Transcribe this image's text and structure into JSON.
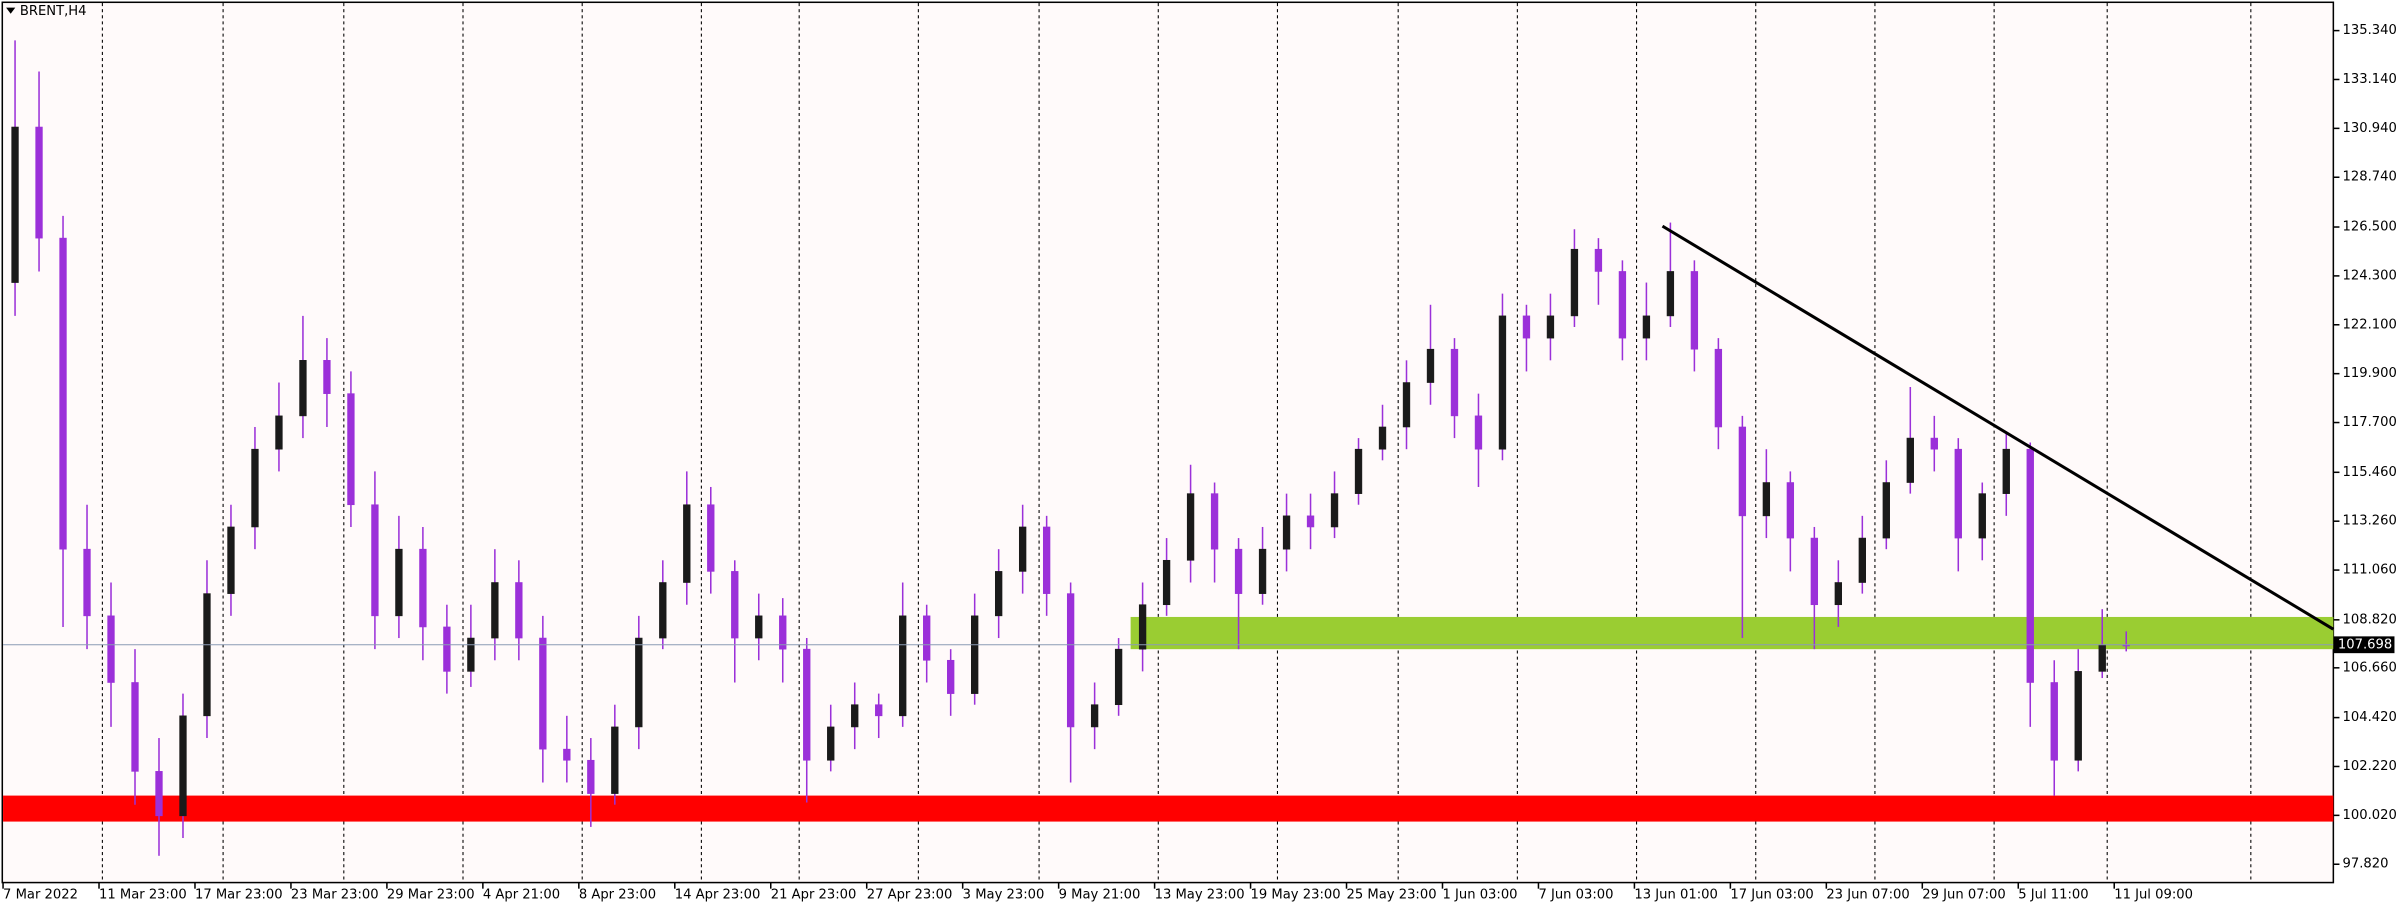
{
  "chart_data": {
    "type": "candlestick",
    "title": "BRENT,H4",
    "bull_color": "#1a1a1a",
    "bear_color": "#9b30d9",
    "categories": [
      "7 Mar 2022",
      null,
      null,
      null,
      "11 Mar 23:00",
      null,
      null,
      null,
      "17 Mar 23:00",
      null,
      null,
      null,
      "23 Mar 23:00",
      null,
      null,
      null,
      "29 Mar 23:00",
      null,
      null,
      null,
      "4 Apr 21:00",
      null,
      null,
      null,
      "8 Apr 23:00",
      null,
      null,
      null,
      "14 Apr 23:00",
      null,
      null,
      null,
      "21 Apr 23:00",
      null,
      null,
      null,
      "27 Apr 23:00",
      null,
      null,
      null,
      "3 May 23:00",
      null,
      null,
      null,
      "9 May 21:00",
      null,
      null,
      null,
      "13 May 23:00",
      null,
      null,
      null,
      "19 May 23:00",
      null,
      null,
      null,
      "25 May 23:00",
      null,
      null,
      null,
      "1 Jun 03:00",
      null,
      null,
      null,
      "7 Jun 03:00",
      null,
      null,
      null,
      "13 Jun 01:00",
      null,
      null,
      null,
      "17 Jun 03:00",
      null,
      null,
      null,
      "23 Jun 07:00",
      null,
      null,
      null,
      "29 Jun 07:00",
      null,
      null,
      null,
      "5 Jul 11:00",
      null,
      null,
      null,
      "11 Jul 09:00"
    ],
    "open": [
      124,
      131,
      126,
      112,
      109,
      106,
      102,
      100,
      104.5,
      110,
      113,
      116.5,
      118,
      120.5,
      119,
      114,
      109,
      112,
      108.5,
      106.5,
      108,
      110.5,
      108,
      103,
      102.5,
      101,
      104,
      108,
      110.5,
      114,
      111,
      108,
      109,
      107.5,
      102.5,
      104,
      105,
      104.5,
      109,
      107,
      105.5,
      109,
      111,
      113,
      110,
      104,
      105,
      107.5,
      109.5,
      111.5,
      114.5,
      112,
      110,
      112,
      113.5,
      113,
      114.5,
      116.5,
      117.5,
      119.5,
      121,
      118,
      116.5,
      122.5,
      121.5,
      122.5,
      125.5,
      124.5,
      121.5,
      122.5,
      124.5,
      121,
      117.5,
      113.5,
      115,
      112.5,
      109.5,
      110.5,
      112.5,
      115,
      117,
      116.5,
      112.5,
      114.5,
      116.5,
      106,
      102.5,
      106.5,
      107.7
    ],
    "high": [
      134.9,
      133.5,
      127,
      114,
      110.5,
      107.5,
      103.5,
      105.5,
      111.5,
      114,
      117.5,
      119.5,
      122.5,
      121.5,
      120,
      115.5,
      113.5,
      113,
      109.5,
      109.5,
      112,
      111.5,
      109,
      104.5,
      103.5,
      105,
      109,
      111.5,
      115.5,
      114.8,
      111.5,
      110,
      109.8,
      108,
      105,
      106,
      105.5,
      110.5,
      109.5,
      107.5,
      110,
      112,
      114,
      113.5,
      110.5,
      106,
      108,
      110.5,
      112.5,
      115.8,
      115,
      112.5,
      113,
      114.5,
      114.5,
      115.5,
      117,
      118.5,
      120.5,
      123,
      121.5,
      119,
      123.5,
      123,
      123.5,
      126.4,
      126,
      125,
      124,
      126.7,
      125,
      121.5,
      118,
      116.5,
      115.5,
      113,
      111.5,
      113.5,
      116,
      119.3,
      118,
      117,
      115,
      117.3,
      116.8,
      107,
      107.5,
      109.3,
      108.3
    ],
    "low": [
      122.5,
      124.5,
      108.5,
      107.5,
      104,
      100.5,
      98.2,
      99,
      103.5,
      109,
      112,
      115.5,
      117,
      117.5,
      113,
      107.5,
      108,
      107,
      105.5,
      105.8,
      107,
      107,
      101.5,
      101.5,
      99.5,
      100.5,
      103,
      107.5,
      109.5,
      110,
      106,
      107,
      106,
      100.6,
      102,
      103,
      103.5,
      104,
      106,
      104.5,
      105,
      108,
      110,
      109,
      101.5,
      103,
      104.5,
      106.5,
      109,
      110.5,
      110.5,
      107.5,
      109.5,
      111,
      112,
      112.5,
      114,
      116,
      116.5,
      118.5,
      117,
      114.8,
      116,
      120,
      120.5,
      122,
      123,
      120.5,
      120.5,
      122,
      120,
      116.5,
      108,
      112.5,
      111,
      107.5,
      108.5,
      110,
      112,
      114.5,
      115.5,
      111,
      111.5,
      113.5,
      104,
      100.9,
      102,
      106.2,
      107.4
    ],
    "close": [
      131,
      126,
      112,
      109,
      106,
      102,
      100,
      104.5,
      110,
      113,
      116.5,
      118,
      120.5,
      119,
      114,
      109,
      112,
      108.5,
      106.5,
      108,
      110.5,
      108,
      103,
      102.5,
      101,
      104,
      108,
      110.5,
      114,
      111,
      108,
      109,
      107.5,
      102.5,
      104,
      105,
      104.5,
      109,
      107,
      105.5,
      109,
      111,
      113,
      110,
      104,
      105,
      107.5,
      109.5,
      111.5,
      114.5,
      112,
      110,
      112,
      113.5,
      113,
      114.5,
      116.5,
      117.5,
      119.5,
      121,
      118,
      116.5,
      122.5,
      121.5,
      122.5,
      125.5,
      124.5,
      121.5,
      122.5,
      124.5,
      121,
      117.5,
      113.5,
      115,
      112.5,
      109.5,
      110.5,
      112.5,
      115,
      117,
      116.5,
      112.5,
      114.5,
      116.5,
      106,
      102.5,
      106.5,
      107.7,
      107.698
    ],
    "ylim": [
      96.995,
      136.58
    ],
    "yticks": [
      {
        "value": 135.34,
        "label": "135.340"
      },
      {
        "value": 133.14,
        "label": "133.140"
      },
      {
        "value": 130.94,
        "label": "130.940"
      },
      {
        "value": 128.74,
        "label": "128.740"
      },
      {
        "value": 126.5,
        "label": "126.500"
      },
      {
        "value": 124.3,
        "label": "124.300"
      },
      {
        "value": 122.1,
        "label": "122.100"
      },
      {
        "value": 119.9,
        "label": "119.900"
      },
      {
        "value": 117.7,
        "label": "117.700"
      },
      {
        "value": 115.46,
        "label": "115.460"
      },
      {
        "value": 113.26,
        "label": "113.260"
      },
      {
        "value": 111.06,
        "label": "111.060"
      },
      {
        "value": 108.82,
        "label": "108.820"
      },
      {
        "value": 106.66,
        "label": "106.660"
      },
      {
        "value": 104.42,
        "label": "104.420"
      },
      {
        "value": 102.22,
        "label": "102.220"
      },
      {
        "value": 100.02,
        "label": "100.020"
      },
      {
        "value": 97.82,
        "label": "97.820"
      }
    ],
    "last_price": 107.698,
    "zones": [
      {
        "low": 107.5,
        "high": 108.95,
        "start": 46.5,
        "color": "#9acd32"
      },
      {
        "low": 99.74,
        "high": 100.91,
        "color": "#ff0000"
      }
    ],
    "trendline": {
      "x": [
        68.67,
        96.63
      ],
      "y": [
        126.54,
        108.4
      ],
      "color": "#000000"
    }
  }
}
